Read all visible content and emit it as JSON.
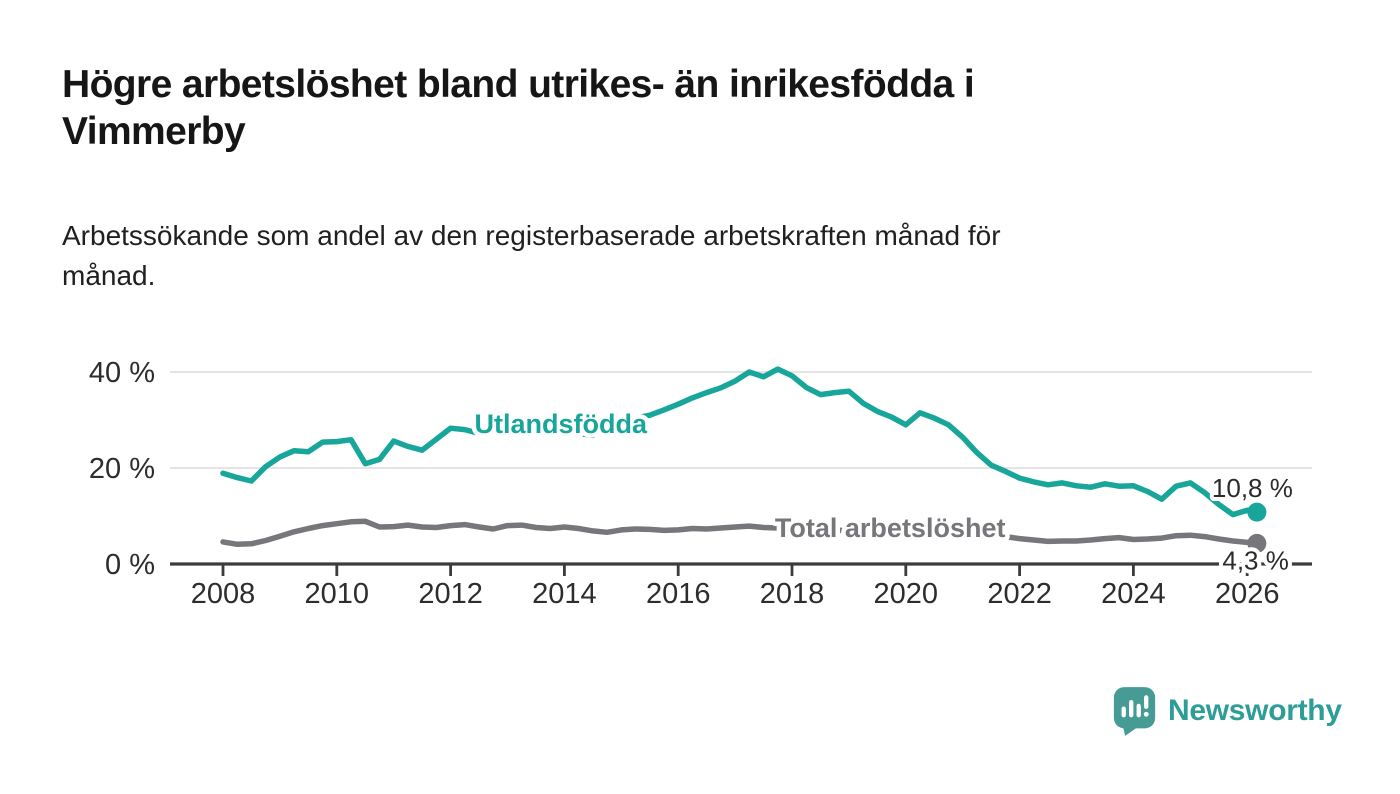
{
  "header": {
    "title_lines": [
      "Högre arbetslöshet bland utrikes- än inrikesfödda i",
      "Vimmerby"
    ],
    "subtitle_lines": [
      "Arbetssökande som andel av den registerbaserade arbetskraften månad för",
      "månad."
    ]
  },
  "footer": {
    "brand": "Newsworthy",
    "brand_color": "#2f9d97",
    "logo_icon": "bar-chart-speech-bubble-icon",
    "logo_bg_color": "#479b95"
  },
  "chart_data": {
    "type": "line",
    "title": "Högre arbetslöshet bland utrikes- än inrikesfödda i Vimmerby",
    "subtitle": "Arbetssökande som andel av den registerbaserade arbetskraften månad för månad.",
    "xlabel": "",
    "ylabel": "",
    "xlim": [
      2007.1,
      2027.1
    ],
    "ylim": [
      0,
      43
    ],
    "grid": "horizontal",
    "legend_position": "inline-labels",
    "x_ticks": [
      {
        "value": 2008,
        "label": "2008"
      },
      {
        "value": 2010,
        "label": "2010"
      },
      {
        "value": 2012,
        "label": "2012"
      },
      {
        "value": 2014,
        "label": "2014"
      },
      {
        "value": 2016,
        "label": "2016"
      },
      {
        "value": 2018,
        "label": "2018"
      },
      {
        "value": 2020,
        "label": "2020"
      },
      {
        "value": 2022,
        "label": "2022"
      },
      {
        "value": 2024,
        "label": "2024"
      },
      {
        "value": 2026,
        "label": "2026"
      }
    ],
    "y_ticks": [
      {
        "value": 0,
        "label": "0 %"
      },
      {
        "value": 20,
        "label": "20 %"
      },
      {
        "value": 40,
        "label": "40 %"
      }
    ],
    "x": [
      2008,
      2008.25,
      2008.5,
      2008.75,
      2009,
      2009.25,
      2009.5,
      2009.75,
      2010,
      2010.25,
      2010.5,
      2010.75,
      2011,
      2011.25,
      2011.5,
      2011.75,
      2012,
      2012.25,
      2012.5,
      2012.75,
      2013,
      2013.25,
      2013.5,
      2013.75,
      2014,
      2014.25,
      2014.5,
      2014.75,
      2015,
      2015.25,
      2015.5,
      2015.75,
      2016,
      2016.25,
      2016.5,
      2016.75,
      2017,
      2017.25,
      2017.5,
      2017.75,
      2018,
      2018.25,
      2018.5,
      2018.75,
      2019,
      2019.25,
      2019.5,
      2019.75,
      2020,
      2020.25,
      2020.5,
      2020.75,
      2021,
      2021.25,
      2021.5,
      2021.75,
      2022,
      2022.25,
      2022.5,
      2022.75,
      2023,
      2023.25,
      2023.5,
      2023.75,
      2024,
      2024.25,
      2024.5,
      2024.75,
      2025,
      2025.25,
      2025.5,
      2025.75,
      2026,
      2026.17
    ],
    "series": [
      {
        "name": "Utlandsfödda",
        "color": "#18a69b",
        "label": {
          "text": "Utlandsfödda",
          "x": 2012.42,
          "y": 27.3
        },
        "end_label": {
          "text": "10,8 %",
          "dx": 36,
          "dy": -15
        },
        "end_value": 10.8,
        "values": [
          18.9,
          18.0,
          17.3,
          20.3,
          22.3,
          23.6,
          23.4,
          25.4,
          25.5,
          25.9,
          20.9,
          21.8,
          25.6,
          24.5,
          23.7,
          26.0,
          28.3,
          28.0,
          27.2,
          28.6,
          28.2,
          27.3,
          28.4,
          29.3,
          28.8,
          27.2,
          26.8,
          28.8,
          29.6,
          30.4,
          31.0,
          32.1,
          33.3,
          34.6,
          35.7,
          36.7,
          38.1,
          40.0,
          39.0,
          40.6,
          39.2,
          36.8,
          35.3,
          35.7,
          36.0,
          33.5,
          31.8,
          30.6,
          29.0,
          31.5,
          30.4,
          29.0,
          26.4,
          23.2,
          20.6,
          19.3,
          17.9,
          17.1,
          16.5,
          16.9,
          16.3,
          16.0,
          16.7,
          16.2,
          16.3,
          15.1,
          13.5,
          16.2,
          16.9,
          14.9,
          12.4,
          10.3,
          11.2,
          10.8
        ]
      },
      {
        "name": "Total arbetslöshet",
        "color": "#77777b",
        "label": {
          "text": "Total arbetslöshet",
          "x": 2017.7,
          "y": 5.6
        },
        "end_label": {
          "text": "4,3 %",
          "dx": 32,
          "dy": 26
        },
        "end_value": 4.3,
        "values": [
          4.6,
          4.1,
          4.2,
          4.9,
          5.8,
          6.7,
          7.4,
          8.0,
          8.4,
          8.8,
          8.9,
          7.7,
          7.8,
          8.1,
          7.7,
          7.6,
          8.0,
          8.2,
          7.7,
          7.3,
          8.0,
          8.1,
          7.6,
          7.4,
          7.7,
          7.4,
          6.9,
          6.6,
          7.1,
          7.3,
          7.2,
          7.0,
          7.1,
          7.4,
          7.3,
          7.5,
          7.7,
          7.9,
          7.6,
          7.5,
          7.6,
          7.3,
          7.5,
          7.1,
          6.9,
          6.8,
          7.2,
          7.1,
          7.3,
          7.9,
          7.6,
          7.4,
          7.0,
          6.6,
          6.1,
          5.7,
          5.3,
          5.0,
          4.7,
          4.8,
          4.8,
          5.0,
          5.3,
          5.5,
          5.1,
          5.2,
          5.4,
          5.9,
          6.0,
          5.7,
          5.2,
          4.8,
          4.5,
          4.3
        ]
      }
    ]
  }
}
